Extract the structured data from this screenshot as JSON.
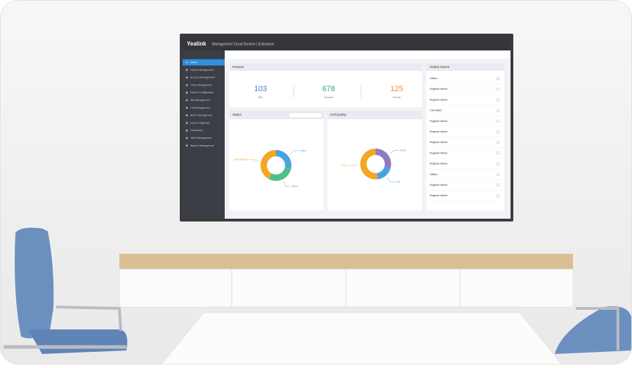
{
  "header": {
    "logo": "Yealink",
    "title": "Management Cloud Service | Enterprise"
  },
  "sidebar": {
    "items": [
      "Home",
      "Device Management",
      "Account Management",
      "Order Management",
      "Device Configuration",
      "Site Management",
      "Call Management",
      "Alarm Management",
      "Device Diagnosis",
      "Dashboard",
      "VMS Management",
      "System Management"
    ]
  },
  "overview": {
    "title": "Preview",
    "stats": [
      {
        "value": "103",
        "label": "Site"
      },
      {
        "value": "678",
        "label": "Account"
      },
      {
        "value": "125",
        "label": "Device"
      }
    ]
  },
  "status": {
    "title": "Status",
    "segments": [
      {
        "name": "Online",
        "color": "#4aa3df",
        "value": 28
      },
      {
        "name": "Offline",
        "color": "#4fc08d",
        "value": 30
      },
      {
        "name": "Unregistered",
        "color": "#f5a623",
        "value": 42
      }
    ]
  },
  "call_quality": {
    "title": "Call Quality",
    "segments": [
      {
        "name": "Good",
        "color": "#8e7cc3",
        "value": 30
      },
      {
        "name": "Fair",
        "color": "#4aa3df",
        "value": 18
      },
      {
        "name": "Poor",
        "color": "#f5a623",
        "value": 52
      }
    ]
  },
  "alarms": {
    "title": "Global Alarms",
    "items": [
      "Offline",
      "Register failure",
      "Register failure",
      "Call failed",
      "Register failure",
      "Register failure",
      "Register failure",
      "Register failure",
      "Register failure",
      "Offline",
      "Register failure",
      "Register failure"
    ]
  }
}
